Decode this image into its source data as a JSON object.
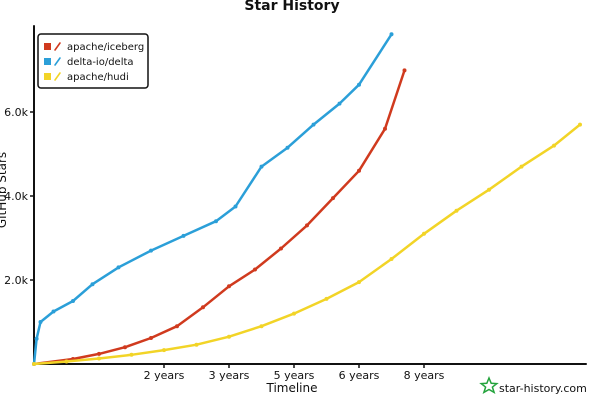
{
  "chart_data": {
    "type": "line",
    "title": "Star History",
    "xlabel": "Timeline",
    "ylabel": "GitHub Stars",
    "grid": false,
    "legend_position": "top-left",
    "xlim": [
      0,
      8.4
    ],
    "ylim": [
      0,
      8000
    ],
    "x_ticks": [
      {
        "value": 2,
        "label": "2 years"
      },
      {
        "value": 3,
        "label": "3 years"
      },
      {
        "value": 4,
        "label": "5 years"
      },
      {
        "value": 5,
        "label": "6 years"
      },
      {
        "value": 6,
        "label": "8 years"
      }
    ],
    "y_ticks": [
      {
        "value": 2000,
        "label": "2.0k"
      },
      {
        "value": 4000,
        "label": "4.0k"
      },
      {
        "value": 6000,
        "label": "6.0k"
      }
    ],
    "series": [
      {
        "name": "apache/iceberg",
        "color": "#d03a1e",
        "x": [
          0,
          0.6,
          1.0,
          1.4,
          1.8,
          2.2,
          2.6,
          3.0,
          3.4,
          3.8,
          4.2,
          4.6,
          5.0,
          5.4,
          5.7
        ],
        "y": [
          0,
          120,
          240,
          400,
          620,
          900,
          1350,
          1850,
          2250,
          2750,
          3300,
          3950,
          4600,
          5600,
          6990
        ]
      },
      {
        "name": "delta-io/delta",
        "color": "#2b9fd8",
        "x": [
          0,
          0.04,
          0.1,
          0.3,
          0.6,
          0.9,
          1.3,
          1.8,
          2.3,
          2.8,
          3.1,
          3.5,
          3.9,
          4.3,
          4.7,
          5.0,
          5.5
        ],
        "y": [
          0,
          600,
          1000,
          1250,
          1500,
          1900,
          2300,
          2700,
          3050,
          3400,
          3750,
          4700,
          5150,
          5700,
          6200,
          6650,
          7850
        ]
      },
      {
        "name": "apache/hudi",
        "color": "#f2d427",
        "x": [
          0,
          0.5,
          1.0,
          1.5,
          2.0,
          2.5,
          3.0,
          3.5,
          4.0,
          4.5,
          5.0,
          5.5,
          6.0,
          6.5,
          7.0,
          7.5,
          8.0,
          8.4
        ],
        "y": [
          0,
          60,
          130,
          220,
          330,
          460,
          650,
          900,
          1200,
          1550,
          1950,
          2500,
          3100,
          3650,
          4150,
          4700,
          5200,
          5700
        ]
      }
    ]
  },
  "legend": [
    {
      "label": "apache/iceberg",
      "color": "#d03a1e"
    },
    {
      "label": "delta-io/delta",
      "color": "#2b9fd8"
    },
    {
      "label": "apache/hudi",
      "color": "#f2d427"
    }
  ],
  "brand": {
    "label": "star-history.com",
    "icon": "star-icon",
    "color": "#23a33c"
  }
}
